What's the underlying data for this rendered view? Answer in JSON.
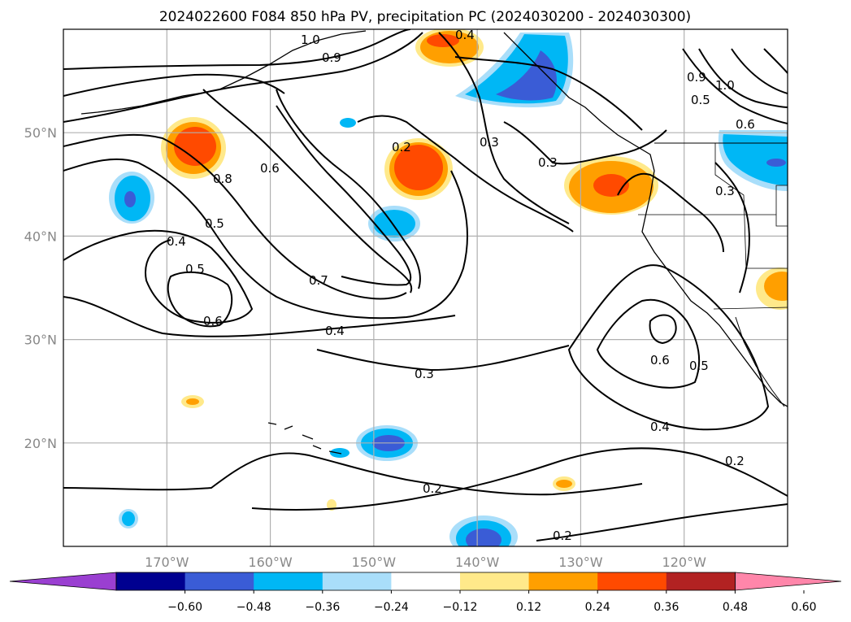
{
  "title": "2024022600 F084 850 hPa PV, precipitation PC (2024030200 - 2024030300)",
  "colors": {
    "lat_lon_grid": "#b0b0b0",
    "contour": "#000000"
  },
  "map": {
    "lon_range": [
      -180,
      -110
    ],
    "lat_range": [
      10,
      60
    ],
    "lat_ticks": [
      {
        "value": 50,
        "label": "50°N"
      },
      {
        "value": 40,
        "label": "40°N"
      },
      {
        "value": 30,
        "label": "30°N"
      },
      {
        "value": 20,
        "label": "20°N"
      }
    ],
    "lon_ticks": [
      {
        "value": -170,
        "label": "170°W"
      },
      {
        "value": -160,
        "label": "160°W"
      },
      {
        "value": -150,
        "label": "150°W"
      },
      {
        "value": -140,
        "label": "140°W"
      },
      {
        "value": -130,
        "label": "130°W"
      },
      {
        "value": -120,
        "label": "120°W"
      }
    ],
    "contour_labels": [
      "1.0",
      "0.9",
      "0.4",
      "0.3",
      "0.8",
      "0.6",
      "0.5",
      "0.4",
      "0.5",
      "0.7",
      "0.6",
      "0.4",
      "0.2",
      "0.3",
      "0.3",
      "0.9",
      "1.0",
      "0.5",
      "0.6",
      "0.3",
      "0.6",
      "0.5",
      "0.4",
      "0.2",
      "0.2",
      "0.2"
    ]
  },
  "colorbar": {
    "ticks": [
      "−0.60",
      "−0.48",
      "−0.36",
      "−0.24",
      "−0.12",
      "0.12",
      "0.24",
      "0.36",
      "0.48",
      "0.60"
    ],
    "colors": {
      "under": "#9a3fd1",
      "levels": [
        "#000090",
        "#3a5cd6",
        "#00b7f5",
        "#a9defa",
        "#ffffff",
        "#ffe98a",
        "#ff9f00",
        "#ff4a00",
        "#b22222"
      ],
      "over": "#ff86aa"
    }
  }
}
